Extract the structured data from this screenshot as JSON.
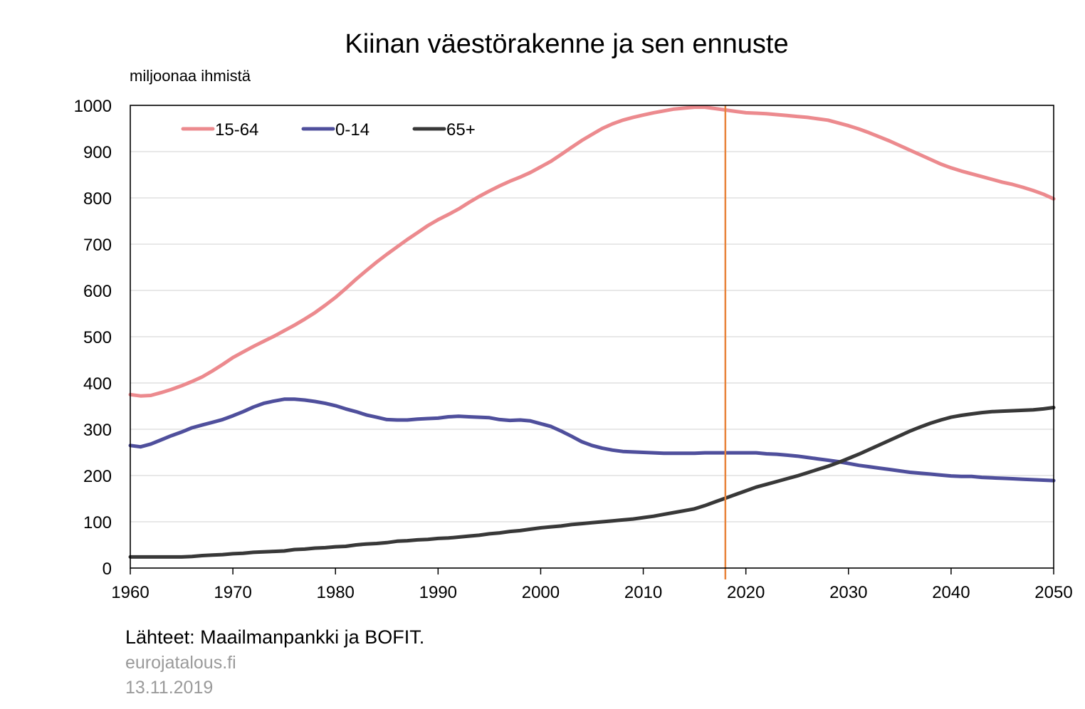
{
  "chart_data": {
    "type": "line",
    "title": "Kiinan väestörakenne ja sen ennuste",
    "ylabel": "miljoonaa ihmistä",
    "xlabel": "",
    "xlim": [
      1960,
      2050
    ],
    "ylim": [
      0,
      1000
    ],
    "x_ticks": [
      "1960",
      "1970",
      "1980",
      "1990",
      "2000",
      "2010",
      "2020",
      "2030",
      "2040",
      "2050"
    ],
    "y_ticks": [
      "0",
      "100",
      "200",
      "300",
      "400",
      "500",
      "600",
      "700",
      "800",
      "900",
      "1000"
    ],
    "grid": true,
    "legend_position": "top-left",
    "reference_line": {
      "x": 2018,
      "color": "#E8833A"
    },
    "series": [
      {
        "name": "15-64",
        "color": "#EC8A8E",
        "points": [
          [
            1960,
            375
          ],
          [
            1961,
            372
          ],
          [
            1962,
            373
          ],
          [
            1963,
            379
          ],
          [
            1964,
            386
          ],
          [
            1965,
            394
          ],
          [
            1966,
            403
          ],
          [
            1967,
            413
          ],
          [
            1968,
            426
          ],
          [
            1969,
            440
          ],
          [
            1970,
            455
          ],
          [
            1971,
            467
          ],
          [
            1972,
            479
          ],
          [
            1973,
            490
          ],
          [
            1974,
            501
          ],
          [
            1975,
            513
          ],
          [
            1976,
            525
          ],
          [
            1977,
            538
          ],
          [
            1978,
            552
          ],
          [
            1979,
            568
          ],
          [
            1980,
            585
          ],
          [
            1981,
            604
          ],
          [
            1982,
            624
          ],
          [
            1983,
            643
          ],
          [
            1984,
            661
          ],
          [
            1985,
            678
          ],
          [
            1986,
            694
          ],
          [
            1987,
            710
          ],
          [
            1988,
            725
          ],
          [
            1989,
            740
          ],
          [
            1990,
            753
          ],
          [
            1991,
            764
          ],
          [
            1992,
            776
          ],
          [
            1993,
            790
          ],
          [
            1994,
            803
          ],
          [
            1995,
            815
          ],
          [
            1996,
            826
          ],
          [
            1997,
            836
          ],
          [
            1998,
            845
          ],
          [
            1999,
            855
          ],
          [
            2000,
            867
          ],
          [
            2001,
            879
          ],
          [
            2002,
            894
          ],
          [
            2003,
            909
          ],
          [
            2004,
            924
          ],
          [
            2005,
            937
          ],
          [
            2006,
            950
          ],
          [
            2007,
            960
          ],
          [
            2008,
            968
          ],
          [
            2009,
            974
          ],
          [
            2010,
            979
          ],
          [
            2011,
            984
          ],
          [
            2012,
            988
          ],
          [
            2013,
            992
          ],
          [
            2014,
            994
          ],
          [
            2015,
            996
          ],
          [
            2016,
            996
          ],
          [
            2017,
            993
          ],
          [
            2018,
            990
          ],
          [
            2019,
            987
          ],
          [
            2020,
            984
          ],
          [
            2021,
            983
          ],
          [
            2022,
            982
          ],
          [
            2023,
            980
          ],
          [
            2024,
            978
          ],
          [
            2025,
            976
          ],
          [
            2026,
            974
          ],
          [
            2027,
            971
          ],
          [
            2028,
            968
          ],
          [
            2029,
            962
          ],
          [
            2030,
            956
          ],
          [
            2031,
            949
          ],
          [
            2032,
            941
          ],
          [
            2033,
            932
          ],
          [
            2034,
            923
          ],
          [
            2035,
            913
          ],
          [
            2036,
            903
          ],
          [
            2037,
            893
          ],
          [
            2038,
            883
          ],
          [
            2039,
            873
          ],
          [
            2040,
            865
          ],
          [
            2041,
            858
          ],
          [
            2042,
            852
          ],
          [
            2043,
            846
          ],
          [
            2044,
            840
          ],
          [
            2045,
            834
          ],
          [
            2046,
            829
          ],
          [
            2047,
            823
          ],
          [
            2048,
            816
          ],
          [
            2049,
            808
          ],
          [
            2050,
            798
          ]
        ]
      },
      {
        "name": "0-14",
        "color": "#4F4F9C",
        "points": [
          [
            1960,
            265
          ],
          [
            1961,
            262
          ],
          [
            1962,
            268
          ],
          [
            1963,
            277
          ],
          [
            1964,
            286
          ],
          [
            1965,
            294
          ],
          [
            1966,
            303
          ],
          [
            1967,
            309
          ],
          [
            1968,
            315
          ],
          [
            1969,
            321
          ],
          [
            1970,
            329
          ],
          [
            1971,
            338
          ],
          [
            1972,
            348
          ],
          [
            1973,
            356
          ],
          [
            1974,
            361
          ],
          [
            1975,
            365
          ],
          [
            1976,
            365
          ],
          [
            1977,
            363
          ],
          [
            1978,
            360
          ],
          [
            1979,
            356
          ],
          [
            1980,
            351
          ],
          [
            1981,
            344
          ],
          [
            1982,
            338
          ],
          [
            1983,
            331
          ],
          [
            1984,
            326
          ],
          [
            1985,
            321
          ],
          [
            1986,
            320
          ],
          [
            1987,
            320
          ],
          [
            1988,
            322
          ],
          [
            1989,
            323
          ],
          [
            1990,
            324
          ],
          [
            1991,
            327
          ],
          [
            1992,
            328
          ],
          [
            1993,
            327
          ],
          [
            1994,
            326
          ],
          [
            1995,
            325
          ],
          [
            1996,
            321
          ],
          [
            1997,
            319
          ],
          [
            1998,
            320
          ],
          [
            1999,
            318
          ],
          [
            2000,
            312
          ],
          [
            2001,
            306
          ],
          [
            2002,
            296
          ],
          [
            2003,
            285
          ],
          [
            2004,
            273
          ],
          [
            2005,
            265
          ],
          [
            2006,
            259
          ],
          [
            2007,
            255
          ],
          [
            2008,
            252
          ],
          [
            2009,
            251
          ],
          [
            2010,
            250
          ],
          [
            2011,
            249
          ],
          [
            2012,
            248
          ],
          [
            2013,
            248
          ],
          [
            2014,
            248
          ],
          [
            2015,
            248
          ],
          [
            2016,
            249
          ],
          [
            2017,
            249
          ],
          [
            2018,
            249
          ],
          [
            2019,
            249
          ],
          [
            2020,
            249
          ],
          [
            2021,
            249
          ],
          [
            2022,
            247
          ],
          [
            2023,
            246
          ],
          [
            2024,
            244
          ],
          [
            2025,
            242
          ],
          [
            2026,
            239
          ],
          [
            2027,
            236
          ],
          [
            2028,
            233
          ],
          [
            2029,
            230
          ],
          [
            2030,
            226
          ],
          [
            2031,
            222
          ],
          [
            2032,
            219
          ],
          [
            2033,
            216
          ],
          [
            2034,
            213
          ],
          [
            2035,
            210
          ],
          [
            2036,
            207
          ],
          [
            2037,
            205
          ],
          [
            2038,
            203
          ],
          [
            2039,
            201
          ],
          [
            2040,
            199
          ],
          [
            2041,
            198
          ],
          [
            2042,
            198
          ],
          [
            2043,
            196
          ],
          [
            2044,
            195
          ],
          [
            2045,
            194
          ],
          [
            2046,
            193
          ],
          [
            2047,
            192
          ],
          [
            2048,
            191
          ],
          [
            2049,
            190
          ],
          [
            2050,
            189
          ]
        ]
      },
      {
        "name": "65+",
        "color": "#383838",
        "points": [
          [
            1960,
            24
          ],
          [
            1961,
            24
          ],
          [
            1962,
            24
          ],
          [
            1963,
            24
          ],
          [
            1964,
            24
          ],
          [
            1965,
            24
          ],
          [
            1966,
            25
          ],
          [
            1967,
            27
          ],
          [
            1968,
            28
          ],
          [
            1969,
            29
          ],
          [
            1970,
            31
          ],
          [
            1971,
            32
          ],
          [
            1972,
            34
          ],
          [
            1973,
            35
          ],
          [
            1974,
            36
          ],
          [
            1975,
            37
          ],
          [
            1976,
            40
          ],
          [
            1977,
            41
          ],
          [
            1978,
            43
          ],
          [
            1979,
            44
          ],
          [
            1980,
            46
          ],
          [
            1981,
            47
          ],
          [
            1982,
            50
          ],
          [
            1983,
            52
          ],
          [
            1984,
            53
          ],
          [
            1985,
            55
          ],
          [
            1986,
            58
          ],
          [
            1987,
            59
          ],
          [
            1988,
            61
          ],
          [
            1989,
            62
          ],
          [
            1990,
            64
          ],
          [
            1991,
            65
          ],
          [
            1992,
            67
          ],
          [
            1993,
            69
          ],
          [
            1994,
            71
          ],
          [
            1995,
            74
          ],
          [
            1996,
            76
          ],
          [
            1997,
            79
          ],
          [
            1998,
            81
          ],
          [
            1999,
            84
          ],
          [
            2000,
            87
          ],
          [
            2001,
            89
          ],
          [
            2002,
            91
          ],
          [
            2003,
            94
          ],
          [
            2004,
            96
          ],
          [
            2005,
            98
          ],
          [
            2006,
            100
          ],
          [
            2007,
            102
          ],
          [
            2008,
            104
          ],
          [
            2009,
            106
          ],
          [
            2010,
            109
          ],
          [
            2011,
            112
          ],
          [
            2012,
            116
          ],
          [
            2013,
            120
          ],
          [
            2014,
            124
          ],
          [
            2015,
            128
          ],
          [
            2016,
            135
          ],
          [
            2017,
            143
          ],
          [
            2018,
            151
          ],
          [
            2019,
            159
          ],
          [
            2020,
            167
          ],
          [
            2021,
            175
          ],
          [
            2022,
            181
          ],
          [
            2023,
            187
          ],
          [
            2024,
            193
          ],
          [
            2025,
            199
          ],
          [
            2026,
            206
          ],
          [
            2027,
            213
          ],
          [
            2028,
            220
          ],
          [
            2029,
            228
          ],
          [
            2030,
            237
          ],
          [
            2031,
            246
          ],
          [
            2032,
            256
          ],
          [
            2033,
            266
          ],
          [
            2034,
            276
          ],
          [
            2035,
            286
          ],
          [
            2036,
            296
          ],
          [
            2037,
            305
          ],
          [
            2038,
            313
          ],
          [
            2039,
            320
          ],
          [
            2040,
            326
          ],
          [
            2041,
            330
          ],
          [
            2042,
            333
          ],
          [
            2043,
            336
          ],
          [
            2044,
            338
          ],
          [
            2045,
            339
          ],
          [
            2046,
            340
          ],
          [
            2047,
            341
          ],
          [
            2048,
            342
          ],
          [
            2049,
            344
          ],
          [
            2050,
            347
          ]
        ]
      }
    ]
  },
  "footer": {
    "source": "Lähteet: Maailmanpankki ja BOFIT.",
    "site": "eurojatalous.fi",
    "date": "13.11.2019"
  }
}
